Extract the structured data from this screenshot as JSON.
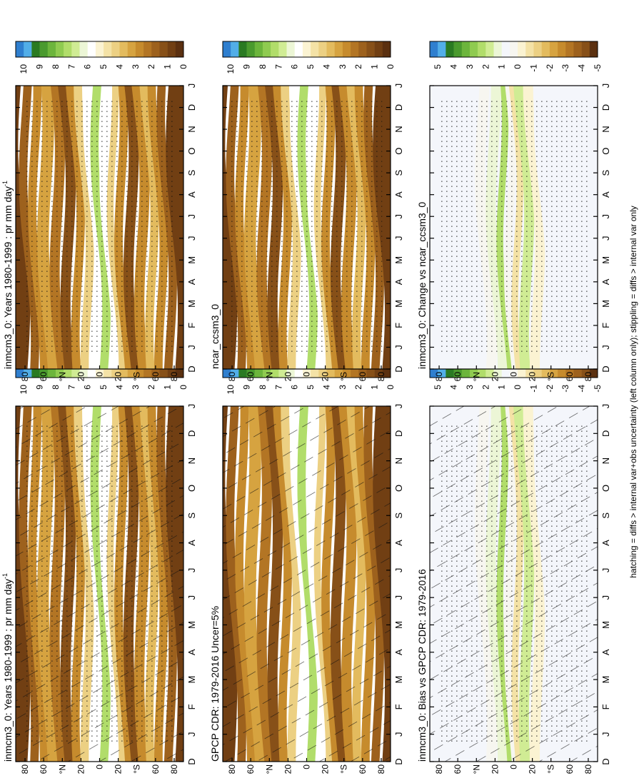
{
  "footer": "hatching = diffs > internal var+obs uncertainty (left column only); stippling = diffs > internal var only",
  "lat_ticks": [
    "80",
    "60",
    "°N",
    "20",
    "0",
    "20",
    "°S",
    "60",
    "80"
  ],
  "month_ticks": [
    "D",
    "J",
    "F",
    "M",
    "A",
    "M",
    "J",
    "J",
    "A",
    "S",
    "O",
    "N",
    "D",
    "J"
  ],
  "colorbar_clim": {
    "labels": [
      "10",
      "9",
      "8",
      "7",
      "6",
      "5",
      "4",
      "3",
      "2",
      "1",
      "0"
    ],
    "colors": [
      "#2f7fcf",
      "#52aee8",
      "#2a7a22",
      "#4a9a2e",
      "#6cb53c",
      "#8fcb50",
      "#b1dd6a",
      "#d0ec94",
      "#ecf6d6",
      "#ffffff",
      "#fbf3d2",
      "#f4e2a6",
      "#ecd083",
      "#e3bb5e",
      "#d6a340",
      "#c68b2d",
      "#b37524",
      "#9d611d",
      "#875018",
      "#713f13",
      "#5b3010"
    ]
  },
  "colorbar_diff": {
    "labels": [
      "5",
      "4",
      "3",
      "2",
      "1",
      "0",
      "-1",
      "-2",
      "-3",
      "-4",
      "-5"
    ],
    "colors": [
      "#2f7fcf",
      "#52aee8",
      "#2a7a22",
      "#4a9a2e",
      "#6cb53c",
      "#8fcb50",
      "#b1dd6a",
      "#d0ec94",
      "#ecf6d6",
      "#f4f6fb",
      "#f7f6f0",
      "#fbf3d2",
      "#f4e2a6",
      "#ecd083",
      "#e3bb5e",
      "#d6a340",
      "#c68b2d",
      "#b37524",
      "#9d611d",
      "#875018",
      "#5b3010"
    ]
  },
  "panels": [
    {
      "id": "model-left",
      "title": "inmcm3_0: Years 1980-1999 : pr mm day",
      "title_sup": "-1",
      "kind": "clim",
      "overlay": "hatch+stipple"
    },
    {
      "id": "obs",
      "title": "GPCP CDR: 1979-2016 Uncer=5%",
      "title_sup": "",
      "kind": "clim",
      "overlay": "hatch"
    },
    {
      "id": "bias",
      "title": "inmcm3_0: Bias vs GPCP CDR: 1979-2016",
      "title_sup": "",
      "kind": "diff",
      "overlay": "hatch+stipple"
    },
    {
      "id": "model-right",
      "title": "inmcm3_0: Years 1980-1999 : pr mm day",
      "title_sup": "-1",
      "kind": "clim",
      "overlay": "stipple"
    },
    {
      "id": "ref-model",
      "title": "ncar_ccsm3_0",
      "title_sup": "",
      "kind": "clim",
      "overlay": "stipple"
    },
    {
      "id": "change",
      "title": "inmcm3_0: Change vs ncar_ccsm3_0",
      "title_sup": "",
      "kind": "diff",
      "overlay": "stipple"
    }
  ]
}
